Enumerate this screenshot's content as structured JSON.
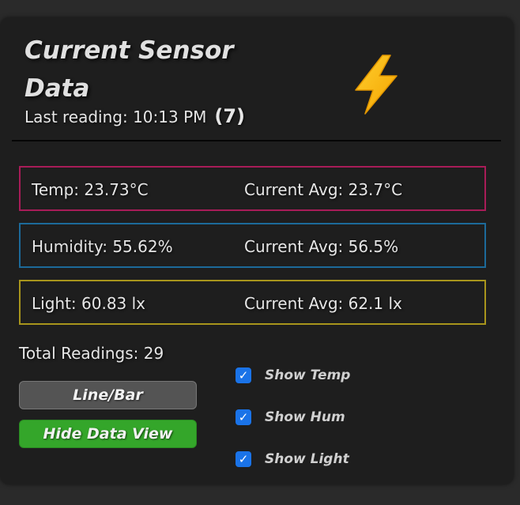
{
  "header": {
    "title": "Current Sensor Data",
    "last_reading": "Last reading: 10:13 PM",
    "reading_count": "(7)",
    "icon": "lightning-bolt-icon"
  },
  "sensors": [
    {
      "value": "Temp: 23.73°C",
      "avg": "Current Avg: 23.7°C",
      "color": "#a81c58"
    },
    {
      "value": "Humidity: 55.62%",
      "avg": "Current Avg: 56.5%",
      "color": "#1c6a9a"
    },
    {
      "value": "Light: 60.83 lx",
      "avg": "Current Avg: 62.1 lx",
      "color": "#a8951c"
    }
  ],
  "total_readings": "Total Readings: 29",
  "buttons": {
    "toggle_chart": "Line/Bar",
    "hide_data": "Hide Data View"
  },
  "checkboxes": [
    {
      "label": "Show Temp",
      "checked": true
    },
    {
      "label": "Show Hum",
      "checked": true
    },
    {
      "label": "Show Light",
      "checked": true
    }
  ],
  "colors": {
    "card_bg": "#1e1e1e",
    "page_bg": "#2a2a2a",
    "hide_button": "#34a62a",
    "toggle_button": "#545454",
    "checkbox": "#1a73e8"
  }
}
